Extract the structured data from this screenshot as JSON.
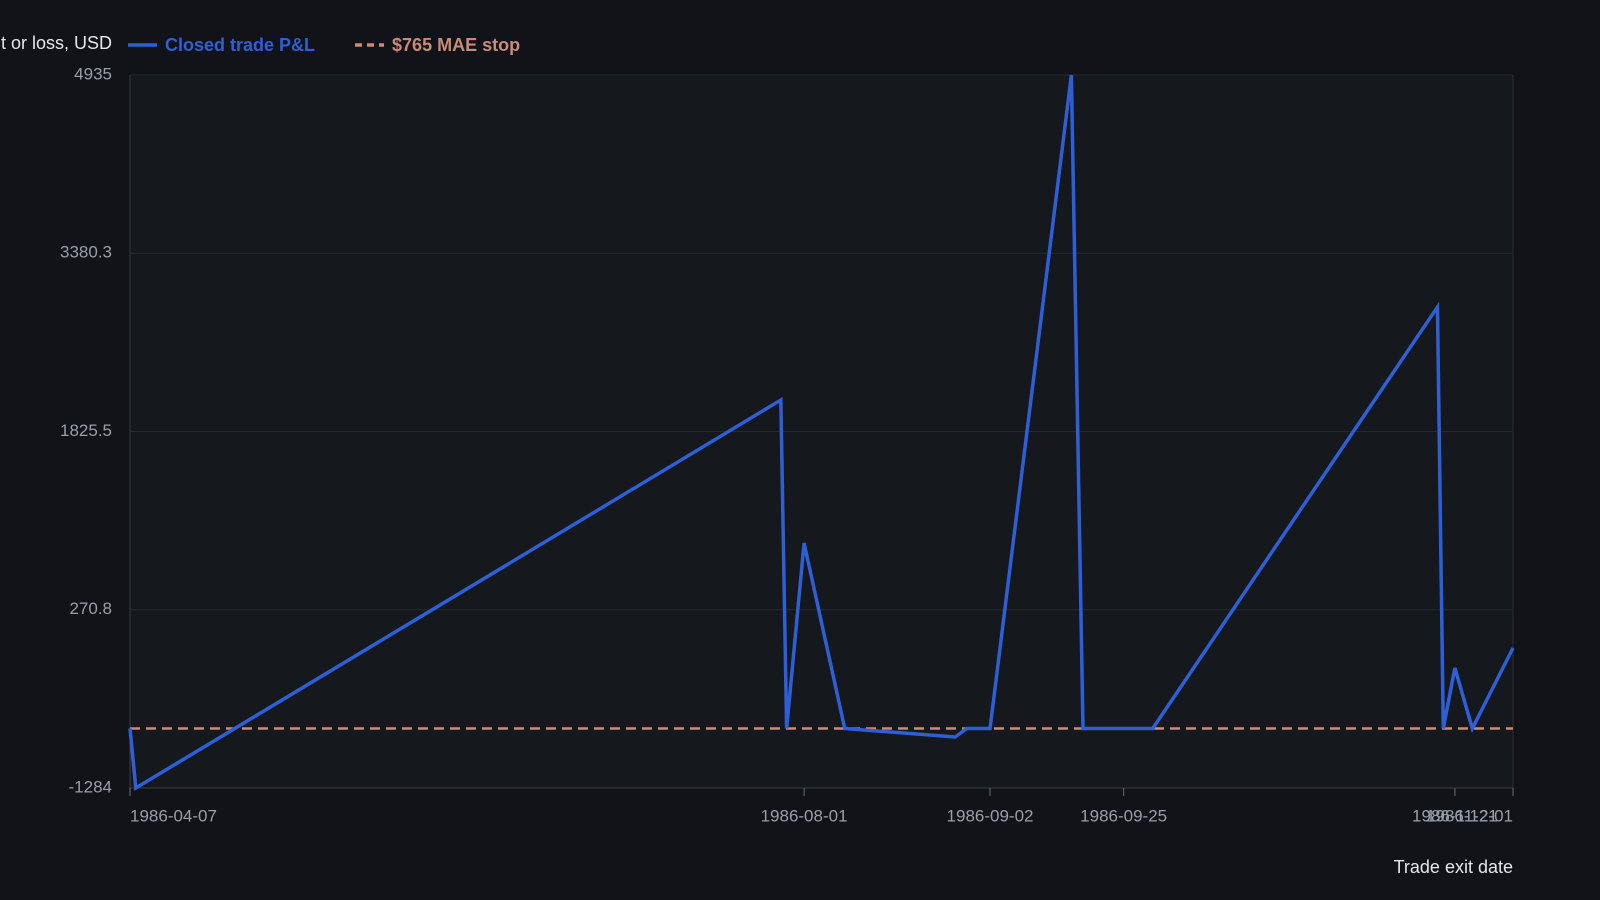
{
  "chart_data": {
    "type": "line",
    "y_label": "Profit or loss, USD",
    "x_label": "Trade exit date",
    "x": [
      "1986-04-07",
      "1986-04-08",
      "1986-07-28",
      "1986-07-29",
      "1986-08-01",
      "1986-08-08",
      "1986-08-27",
      "1986-08-29",
      "1986-09-02",
      "1986-09-16",
      "1986-09-18",
      "1986-09-30",
      "1986-11-18",
      "1986-11-19",
      "1986-11-21",
      "1986-11-24",
      "1986-12-01"
    ],
    "series": [
      {
        "name": "Closed trade P&L",
        "color": "#2f5fd6",
        "values": [
          -765,
          -1284,
          2100,
          -765,
          853,
          -765,
          -839,
          -765,
          -765,
          4935,
          -765,
          -765,
          2911,
          -765,
          -237,
          -765,
          -63
        ]
      }
    ],
    "reference_lines": [
      {
        "name": "$765 MAE stop",
        "value": -765,
        "color": "#c98a78",
        "style": "dashed"
      }
    ],
    "xlim": [
      "1986-04-07",
      "1986-12-01"
    ],
    "xticks": [
      "1986-04-07",
      "1986-08-01",
      "1986-09-02",
      "1986-09-25",
      "1986-11-21",
      "1986-12-01"
    ],
    "ylim": [
      -1284,
      4935
    ],
    "yticks": [
      -1284,
      {
        "value": 270.75,
        "label": "270.8"
      },
      1825.5,
      {
        "value": 3380.25,
        "label": "3380.3"
      },
      4935
    ],
    "grid": true
  }
}
